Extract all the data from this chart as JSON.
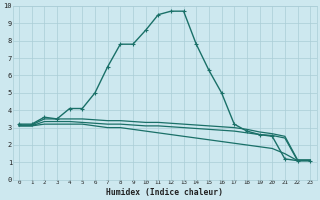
{
  "xlabel": "Humidex (Indice chaleur)",
  "ylabel": "",
  "xlim": [
    -0.5,
    23.5
  ],
  "ylim": [
    0,
    10
  ],
  "xticks": [
    0,
    1,
    2,
    3,
    4,
    5,
    6,
    7,
    8,
    9,
    10,
    11,
    12,
    13,
    14,
    15,
    16,
    17,
    18,
    19,
    20,
    21,
    22,
    23
  ],
  "yticks": [
    0,
    1,
    2,
    3,
    4,
    5,
    6,
    7,
    8,
    9,
    10
  ],
  "bg_color": "#cde8ef",
  "line_color": "#1a7068",
  "grid_color": "#aacdd6",
  "series": [
    {
      "x": [
        0,
        1,
        2,
        3,
        4,
        5,
        6,
        7,
        8,
        9,
        10,
        11,
        12,
        13,
        14,
        15,
        16,
        17,
        18,
        19,
        20,
        21,
        22,
        23
      ],
      "y": [
        3.2,
        3.2,
        3.6,
        3.5,
        4.1,
        4.1,
        5.0,
        6.5,
        7.8,
        7.8,
        8.6,
        9.5,
        9.7,
        9.7,
        7.8,
        6.3,
        5.0,
        3.2,
        2.8,
        2.6,
        2.5,
        1.2,
        1.1,
        1.1
      ],
      "marker": true,
      "linewidth": 1.0
    },
    {
      "x": [
        0,
        1,
        2,
        3,
        4,
        5,
        6,
        7,
        8,
        9,
        10,
        11,
        12,
        13,
        14,
        15,
        16,
        17,
        18,
        19,
        20,
        21,
        22,
        23
      ],
      "y": [
        3.15,
        3.15,
        3.5,
        3.5,
        3.5,
        3.5,
        3.45,
        3.4,
        3.4,
        3.35,
        3.3,
        3.3,
        3.25,
        3.2,
        3.15,
        3.1,
        3.05,
        3.0,
        2.9,
        2.75,
        2.65,
        2.5,
        1.15,
        1.15
      ],
      "marker": false,
      "linewidth": 0.9
    },
    {
      "x": [
        0,
        1,
        2,
        3,
        4,
        5,
        6,
        7,
        8,
        9,
        10,
        11,
        12,
        13,
        14,
        15,
        16,
        17,
        18,
        19,
        20,
        21,
        22,
        23
      ],
      "y": [
        3.1,
        3.1,
        3.35,
        3.35,
        3.35,
        3.3,
        3.25,
        3.2,
        3.2,
        3.15,
        3.1,
        3.1,
        3.05,
        3.0,
        2.95,
        2.9,
        2.85,
        2.8,
        2.7,
        2.6,
        2.55,
        2.4,
        1.1,
        1.1
      ],
      "marker": false,
      "linewidth": 0.9
    },
    {
      "x": [
        0,
        1,
        2,
        3,
        4,
        5,
        6,
        7,
        8,
        9,
        10,
        11,
        12,
        13,
        14,
        15,
        16,
        17,
        18,
        19,
        20,
        21,
        22,
        23
      ],
      "y": [
        3.1,
        3.1,
        3.2,
        3.2,
        3.2,
        3.2,
        3.1,
        3.0,
        3.0,
        2.9,
        2.8,
        2.7,
        2.6,
        2.5,
        2.4,
        2.3,
        2.2,
        2.1,
        2.0,
        1.9,
        1.8,
        1.5,
        1.1,
        1.1
      ],
      "marker": false,
      "linewidth": 0.9
    }
  ]
}
